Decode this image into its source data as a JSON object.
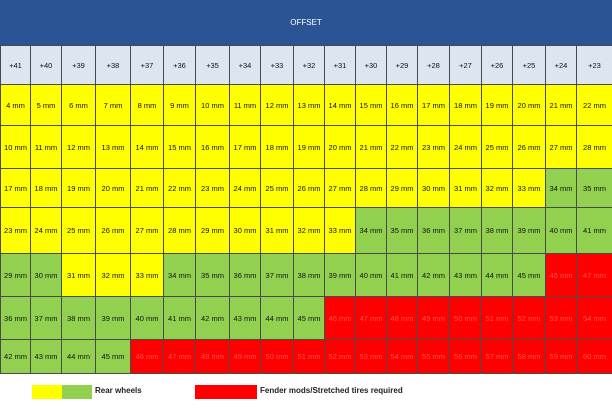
{
  "title": "OFFSET",
  "colors": {
    "header_bar": "#2a5494",
    "header_cells": "#dce6f1",
    "yellow": "#ffff00",
    "green": "#92d050",
    "red": "#ff0000",
    "border": "#4a4a4a"
  },
  "legend": {
    "rear_wheels_label": "Rear wheels",
    "fender_label": "Fender mods/Stretched tires required"
  },
  "chart_data": {
    "type": "table",
    "title": "OFFSET",
    "offsets": [
      "+41",
      "+40",
      "+39",
      "+38",
      "+37",
      "+36",
      "+35",
      "+34",
      "+33",
      "+32",
      "+31",
      "+30",
      "+29",
      "+28",
      "+27",
      "+26",
      "+25",
      "+24",
      "+23"
    ],
    "values": [
      [
        4,
        5,
        6,
        7,
        8,
        9,
        10,
        11,
        12,
        13,
        14,
        15,
        16,
        17,
        18,
        19,
        20,
        21,
        22
      ],
      [
        10,
        11,
        12,
        13,
        14,
        15,
        16,
        17,
        18,
        19,
        20,
        21,
        22,
        23,
        24,
        25,
        26,
        27,
        28
      ],
      [
        17,
        18,
        19,
        20,
        21,
        22,
        23,
        24,
        25,
        26,
        27,
        28,
        29,
        30,
        31,
        32,
        33,
        34,
        35
      ],
      [
        23,
        24,
        25,
        26,
        27,
        28,
        29,
        30,
        31,
        32,
        33,
        34,
        35,
        36,
        37,
        38,
        39,
        40,
        41
      ],
      [
        29,
        30,
        31,
        32,
        33,
        34,
        35,
        36,
        37,
        38,
        39,
        40,
        41,
        42,
        43,
        44,
        45,
        46,
        47
      ],
      [
        36,
        37,
        38,
        39,
        40,
        41,
        42,
        43,
        44,
        45,
        46,
        47,
        48,
        49,
        50,
        51,
        52,
        53,
        54
      ],
      [
        42,
        43,
        44,
        45,
        46,
        47,
        48,
        49,
        50,
        51,
        52,
        53,
        54,
        55,
        56,
        57,
        58,
        59,
        60
      ]
    ],
    "unit": "mm",
    "category_codes": {
      "Y": "yellow",
      "G": "green",
      "R": "red"
    },
    "categories": [
      [
        "Y",
        "Y",
        "Y",
        "Y",
        "Y",
        "Y",
        "Y",
        "Y",
        "Y",
        "Y",
        "Y",
        "Y",
        "Y",
        "Y",
        "Y",
        "Y",
        "Y",
        "Y",
        "Y"
      ],
      [
        "Y",
        "Y",
        "Y",
        "Y",
        "Y",
        "Y",
        "Y",
        "Y",
        "Y",
        "Y",
        "Y",
        "Y",
        "Y",
        "Y",
        "Y",
        "Y",
        "Y",
        "Y",
        "Y"
      ],
      [
        "Y",
        "Y",
        "Y",
        "Y",
        "Y",
        "Y",
        "Y",
        "Y",
        "Y",
        "Y",
        "Y",
        "Y",
        "Y",
        "Y",
        "Y",
        "Y",
        "Y",
        "G",
        "G"
      ],
      [
        "Y",
        "Y",
        "Y",
        "Y",
        "Y",
        "Y",
        "Y",
        "Y",
        "Y",
        "Y",
        "Y",
        "G",
        "G",
        "G",
        "G",
        "G",
        "G",
        "G",
        "G"
      ],
      [
        "G",
        "G",
        "Y",
        "Y",
        "Y",
        "G",
        "G",
        "G",
        "G",
        "G",
        "G",
        "G",
        "G",
        "G",
        "G",
        "G",
        "G",
        "R",
        "R"
      ],
      [
        "G",
        "G",
        "G",
        "G",
        "G",
        "G",
        "G",
        "G",
        "G",
        "G",
        "R",
        "R",
        "R",
        "R",
        "R",
        "R",
        "R",
        "R",
        "R"
      ],
      [
        "G",
        "G",
        "G",
        "G",
        "R",
        "R",
        "R",
        "R",
        "R",
        "R",
        "R",
        "R",
        "R",
        "R",
        "R",
        "R",
        "R",
        "R",
        "R"
      ]
    ]
  }
}
